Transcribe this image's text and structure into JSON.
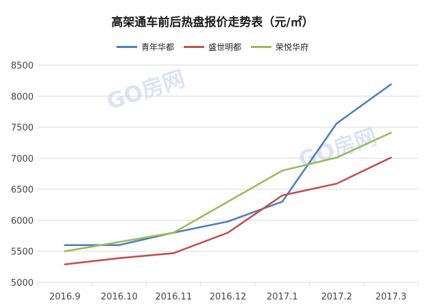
{
  "chart_data": {
    "type": "line",
    "title": "高架通车前后热盘报价走势表（元/㎡）",
    "categories": [
      "2016.9",
      "2016.10",
      "2016.11",
      "2016.12",
      "2017.1",
      "2017.2",
      "2017.3"
    ],
    "series": [
      {
        "name": "青年华都",
        "color": "#4e7fbe",
        "values": [
          5600,
          5600,
          5800,
          5980,
          6300,
          7560,
          8190
        ]
      },
      {
        "name": "盛世明都",
        "color": "#c0504d",
        "values": [
          5290,
          5390,
          5470,
          5800,
          6400,
          6590,
          7010
        ]
      },
      {
        "name": "荣悦华府",
        "color": "#9bbb59",
        "values": [
          5500,
          5650,
          5800,
          6300,
          6800,
          7010,
          7410
        ]
      }
    ],
    "ylim": [
      5000,
      8500
    ],
    "yticks": [
      5000,
      5500,
      6000,
      6500,
      7000,
      7500,
      8000,
      8500
    ],
    "grid": true,
    "legend_position": "top",
    "watermark": "GO房网"
  }
}
